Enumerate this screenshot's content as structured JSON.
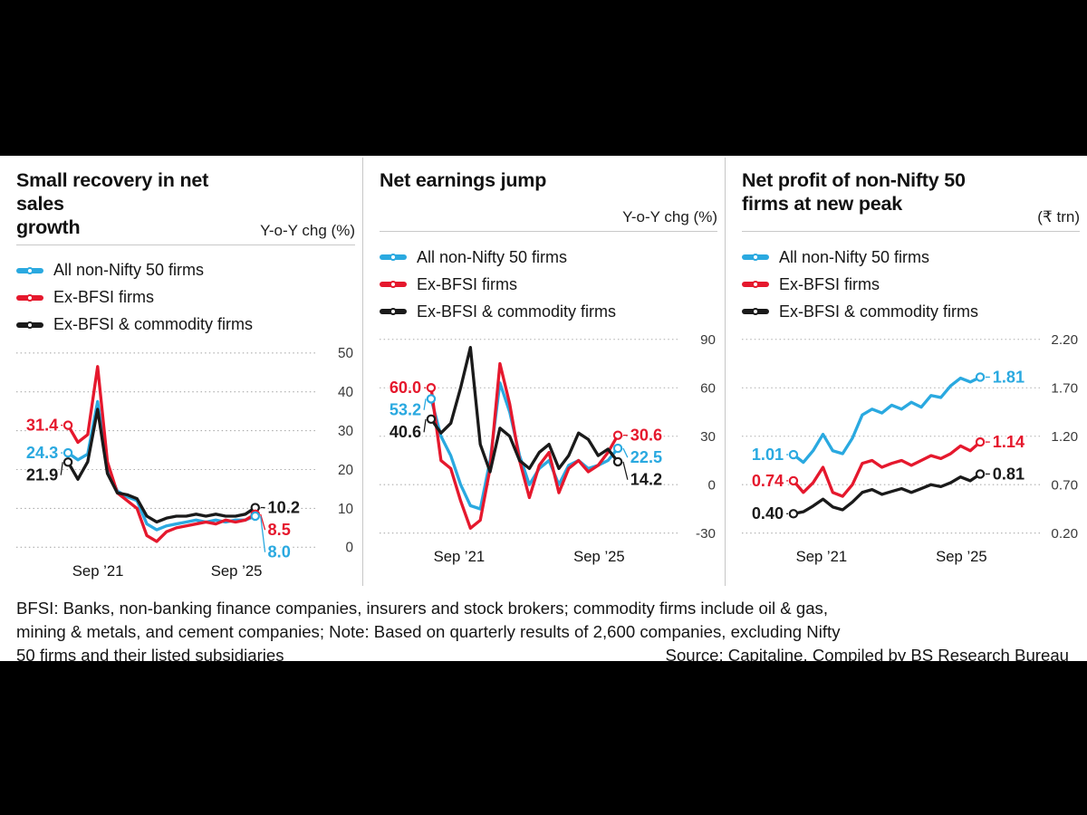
{
  "colors": {
    "blue": "#2aa9e0",
    "red": "#e5182d",
    "black": "#1a1a1a",
    "grid": "#ababab",
    "divider": "#c6c6c6"
  },
  "footer": {
    "note_line1": "BFSI: Banks, non-banking finance companies, insurers and stock brokers; commodity firms include oil & gas,",
    "note_line2": "mining & metals, and cement companies; Note: Based on quarterly results of 2,600 companies, excluding Nifty",
    "note_line3": "50 firms and their listed subsidiaries",
    "source": "Source: Capitaline, Compiled by BS Research Bureau"
  },
  "chart_data": [
    {
      "type": "line",
      "title": "Small recovery in net sales growth",
      "title_lines": [
        "Small recovery in net sales",
        "growth"
      ],
      "unit": "Y-o-Y chg (%)",
      "ylim": [
        0,
        50
      ],
      "yticks": [
        0,
        10,
        20,
        30,
        40,
        50
      ],
      "ytick_labels": [
        "0",
        "10",
        "20",
        "30",
        "40",
        "50"
      ],
      "grid": "dotted-horizontal",
      "legend_position": "top-left",
      "x_ticks": [
        {
          "label": "Sep ’21",
          "pos": 0.16
        },
        {
          "label": "Sep ’25",
          "pos": 0.9
        }
      ],
      "series": [
        {
          "name": "All non-Nifty 50 firms",
          "color_key": "blue",
          "start_label": "24.3",
          "end_label": "8.0",
          "values": [
            24.3,
            22.5,
            24.0,
            37.5,
            20.0,
            14.5,
            13.0,
            12.0,
            6.0,
            4.5,
            5.5,
            6.0,
            6.5,
            7.0,
            6.5,
            7.0,
            6.5,
            7.0,
            7.0,
            8.0
          ]
        },
        {
          "name": "Ex-BFSI firms",
          "color_key": "red",
          "start_label": "31.4",
          "end_label": "8.5",
          "values": [
            31.4,
            27.0,
            29.0,
            46.5,
            22.0,
            14.0,
            12.0,
            10.0,
            3.0,
            1.5,
            4.0,
            5.0,
            5.5,
            6.0,
            6.5,
            6.0,
            7.0,
            6.5,
            7.0,
            8.5
          ]
        },
        {
          "name": "Ex-BFSI & commodity firms",
          "color_key": "black",
          "start_label": "21.9",
          "end_label": "10.2",
          "values": [
            21.9,
            17.5,
            22.0,
            35.5,
            19.0,
            14.0,
            13.5,
            12.5,
            8.0,
            6.5,
            7.5,
            8.0,
            8.0,
            8.5,
            8.0,
            8.5,
            8.0,
            8.0,
            8.5,
            10.2
          ]
        }
      ]
    },
    {
      "type": "line",
      "title": "Net earnings jump",
      "title_lines": [
        "Net earnings jump"
      ],
      "unit": "Y-o-Y chg (%)",
      "ylim": [
        -30,
        90
      ],
      "yticks": [
        -30,
        0,
        30,
        60,
        90
      ],
      "ytick_labels": [
        "-30",
        "0",
        "30",
        "60",
        "90"
      ],
      "grid": "dotted-horizontal",
      "legend_position": "top-left",
      "x_ticks": [
        {
          "label": "Sep ’21",
          "pos": 0.15
        },
        {
          "label": "Sep ’25",
          "pos": 0.9
        }
      ],
      "series": [
        {
          "name": "All non-Nifty 50 firms",
          "color_key": "blue",
          "start_label": "53.2",
          "end_label": "22.5",
          "values": [
            53.2,
            30.0,
            18.0,
            0.0,
            -13.0,
            -15.0,
            15.0,
            63.0,
            45.0,
            18.0,
            0.0,
            10.0,
            15.0,
            0.0,
            12.0,
            15.0,
            10.0,
            12.0,
            15.0,
            22.5
          ]
        },
        {
          "name": "Ex-BFSI firms",
          "color_key": "red",
          "start_label": "60.0",
          "end_label": "30.6",
          "values": [
            60.0,
            15.0,
            10.0,
            -10.0,
            -27.0,
            -22.0,
            10.0,
            75.0,
            50.0,
            15.0,
            -8.0,
            12.0,
            20.0,
            -5.0,
            10.0,
            15.0,
            8.0,
            12.0,
            20.0,
            30.6
          ]
        },
        {
          "name": "Ex-BFSI & commodity firms",
          "color_key": "black",
          "start_label": "40.6",
          "end_label": "14.2",
          "values": [
            40.6,
            32.0,
            38.0,
            60.0,
            85.0,
            25.0,
            8.0,
            35.0,
            30.0,
            15.0,
            10.0,
            20.0,
            25.0,
            10.0,
            18.0,
            32.0,
            28.0,
            18.0,
            22.0,
            14.2
          ]
        }
      ]
    },
    {
      "type": "line",
      "title": "Net profit of non-Nifty 50 firms at new peak",
      "title_lines": [
        "Net profit of non-Nifty 50",
        "firms at new peak"
      ],
      "unit": "(₹ trn)",
      "ylim": [
        0.2,
        2.2
      ],
      "yticks": [
        0.2,
        0.7,
        1.2,
        1.7,
        2.2
      ],
      "ytick_labels": [
        "0.20",
        "0.70",
        "1.20",
        "1.70",
        "2.20"
      ],
      "grid": "dotted-horizontal",
      "legend_position": "top-left",
      "x_ticks": [
        {
          "label": "Sep ’21",
          "pos": 0.15
        },
        {
          "label": "Sep ’25",
          "pos": 0.9
        }
      ],
      "series": [
        {
          "name": "All non-Nifty 50 firms",
          "color_key": "blue",
          "start_label": "1.01",
          "end_label": "1.81",
          "values": [
            1.01,
            0.93,
            1.05,
            1.22,
            1.05,
            1.02,
            1.18,
            1.42,
            1.48,
            1.44,
            1.52,
            1.48,
            1.55,
            1.5,
            1.62,
            1.6,
            1.72,
            1.8,
            1.76,
            1.81
          ]
        },
        {
          "name": "Ex-BFSI firms",
          "color_key": "red",
          "start_label": "0.74",
          "end_label": "1.14",
          "values": [
            0.74,
            0.62,
            0.72,
            0.88,
            0.62,
            0.58,
            0.7,
            0.92,
            0.95,
            0.88,
            0.92,
            0.95,
            0.9,
            0.95,
            1.0,
            0.97,
            1.02,
            1.1,
            1.05,
            1.14
          ]
        },
        {
          "name": "Ex-BFSI & commodity firms",
          "color_key": "black",
          "start_label": "0.40",
          "end_label": "0.81",
          "values": [
            0.4,
            0.42,
            0.48,
            0.55,
            0.47,
            0.44,
            0.52,
            0.62,
            0.65,
            0.6,
            0.63,
            0.66,
            0.62,
            0.66,
            0.7,
            0.68,
            0.72,
            0.78,
            0.74,
            0.81
          ]
        }
      ]
    }
  ]
}
